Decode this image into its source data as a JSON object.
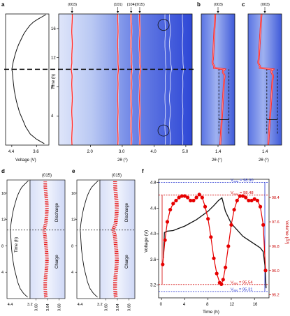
{
  "figure": {
    "panel_labels": [
      "a",
      "b",
      "c",
      "d",
      "e",
      "f"
    ],
    "colors": {
      "xrd_bg_dark": "#2e47d6",
      "xrd_bg_light": "#e6ecfb",
      "peak": "#ff2a2a",
      "voltage_curve": "#111111",
      "volume_curve": "#e60000",
      "v_max_line": "#1f2fd0",
      "ref_line": "#d20000"
    }
  },
  "chart_data": [
    {
      "id": "panel-a-voltage",
      "type": "line",
      "xlabel": "Voltage (V)",
      "xticks": [
        "4.4",
        "3.6"
      ],
      "xlim": [
        4.6,
        3.2
      ],
      "ylim": [
        0,
        18
      ],
      "x": [
        3.35,
        3.6,
        3.8,
        3.95,
        4.05,
        4.15,
        4.25,
        4.32,
        4.36,
        4.38,
        4.4,
        4.38,
        4.35,
        4.3,
        4.25,
        4.18,
        4.1,
        4.02,
        3.93,
        3.82,
        3.7,
        3.55,
        3.3
      ],
      "y": [
        0.2,
        0.8,
        1.5,
        2.5,
        3.5,
        4.5,
        6.0,
        7.5,
        9.0,
        10.0,
        10.4,
        10.8,
        11.5,
        12.3,
        13.0,
        13.8,
        14.5,
        15.2,
        15.8,
        16.4,
        16.9,
        17.3,
        17.9
      ],
      "divider_y": 10.4
    },
    {
      "id": "panel-a-xrd",
      "type": "heatmap",
      "ylabel": "Time (h)",
      "xlabel": "2θ (°)",
      "xticks": [
        2.0,
        3.0,
        4.0,
        5.0
      ],
      "yticks": [
        4,
        8,
        12,
        16
      ],
      "xlim": [
        1.0,
        5.2
      ],
      "ylim": [
        0,
        18
      ],
      "peaks": [
        "(003)",
        "(101)",
        "(104)",
        "(015)"
      ],
      "peak_positions": [
        1.42,
        2.86,
        3.28,
        3.55
      ],
      "extra_lines": [
        4.35,
        4.5,
        4.9
      ],
      "circles": [
        [
          4.3,
          16.5
        ],
        [
          4.3,
          2.0
        ]
      ]
    },
    {
      "id": "panel-b-xrd",
      "type": "heatmap",
      "peak": "(003)",
      "xlabel": "2θ (°)",
      "xticks": [
        1.4
      ],
      "xlim": [
        1.1,
        1.7
      ],
      "shift": [
        0.04,
        0.07,
        0.1,
        0.12,
        0.0,
        -0.1,
        -0.08,
        -0.05
      ],
      "dashed_time_range": [
        3.5,
        10.4
      ]
    },
    {
      "id": "panel-c-xrd",
      "type": "heatmap",
      "peak": "(003)",
      "xlabel": "2θ (°)",
      "xticks": [
        1.4
      ],
      "xlim": [
        1.1,
        1.7
      ],
      "shift": [
        0.06,
        0.09,
        0.12,
        0.15,
        0.0,
        -0.12,
        -0.1,
        -0.06
      ],
      "dashed_time_range": [
        3.5,
        10.4
      ]
    },
    {
      "id": "panel-d",
      "type": "heatmap",
      "peak": "(015)",
      "ylabel": "Time (h)",
      "voltage_xticks": [
        "4.4",
        "3.2"
      ],
      "xticks": [
        "3.60",
        "3.64",
        "3.68"
      ],
      "yticks": [
        4,
        8,
        12,
        16
      ],
      "ylim": [
        0,
        18
      ],
      "regions": [
        "Discharge",
        "Charge"
      ]
    },
    {
      "id": "panel-e",
      "type": "heatmap",
      "peak": "(015)",
      "voltage_xticks": [
        "4.4",
        "3.2"
      ],
      "xticks": [
        "3.60",
        "3.64",
        "3.68"
      ],
      "yticks": [
        4,
        8,
        12,
        16
      ],
      "ylim": [
        0,
        18
      ],
      "regions": [
        "Discharge",
        "Charge"
      ]
    },
    {
      "id": "panel-f",
      "type": "line",
      "xlabel": "Time (h)",
      "ylabel": "Voltage (V)",
      "y2label": "Volume (Å³)",
      "xlim": [
        -0.5,
        18.5
      ],
      "ylim": [
        3.0,
        4.85
      ],
      "y2lim": [
        95.1,
        99.0
      ],
      "xticks": [
        0,
        4,
        8,
        12,
        16
      ],
      "yticks": [
        3.2,
        3.6,
        4.0,
        4.4,
        4.8
      ],
      "y2ticks": [
        95.2,
        96.0,
        96.8,
        97.6,
        98.4
      ],
      "annotations": {
        "v_max_label": "V",
        "v_max_sub": "max",
        "v_max_text": " = 98.90",
        "v_max_value": 98.9,
        "v_max_ref_text": " = 98.48",
        "v_max_ref_value": 98.48,
        "v_min_ref_text": " = 95.54",
        "v_min_ref_value": 95.54,
        "v_min_label": "V",
        "v_min_sub": "min",
        "v_min_text": " = 95.31",
        "v_min_value": 95.31
      },
      "series": [
        {
          "role": "voltage",
          "x": [
            0.3,
            0.5,
            1.0,
            2.0,
            4.0,
            6.0,
            8.0,
            9.0,
            9.8,
            10.4,
            11.0,
            12.0,
            13.0,
            14.0,
            15.0,
            16.0,
            17.0,
            17.5,
            17.8,
            18.0
          ],
          "y": [
            3.62,
            4.02,
            4.04,
            4.05,
            4.12,
            4.22,
            4.35,
            4.44,
            4.52,
            4.56,
            4.35,
            4.16,
            4.06,
            3.96,
            3.9,
            3.84,
            3.78,
            3.72,
            3.5,
            3.15
          ]
        },
        {
          "role": "volume",
          "x": [
            0.2,
            0.6,
            1.0,
            1.5,
            2.0,
            2.5,
            3.0,
            3.5,
            4.0,
            4.5,
            5.0,
            5.5,
            6.0,
            6.5,
            7.0,
            7.5,
            8.0,
            8.5,
            9.0,
            9.5,
            10.0,
            10.3,
            10.6,
            11.0,
            11.5,
            12.0,
            12.5,
            13.0,
            13.5,
            14.0,
            14.5,
            15.0,
            15.5,
            16.0,
            16.5,
            17.0,
            17.5,
            17.9
          ],
          "y": [
            96.2,
            97.0,
            97.6,
            98.0,
            98.2,
            98.3,
            98.4,
            98.45,
            98.45,
            98.4,
            98.3,
            98.3,
            98.4,
            98.5,
            98.4,
            98.1,
            97.7,
            97.1,
            96.4,
            95.9,
            95.6,
            95.55,
            95.7,
            96.1,
            96.8,
            97.5,
            98.0,
            98.3,
            98.45,
            98.45,
            98.4,
            98.3,
            98.3,
            98.35,
            98.3,
            98.1,
            97.5,
            96.0
          ]
        }
      ]
    }
  ]
}
